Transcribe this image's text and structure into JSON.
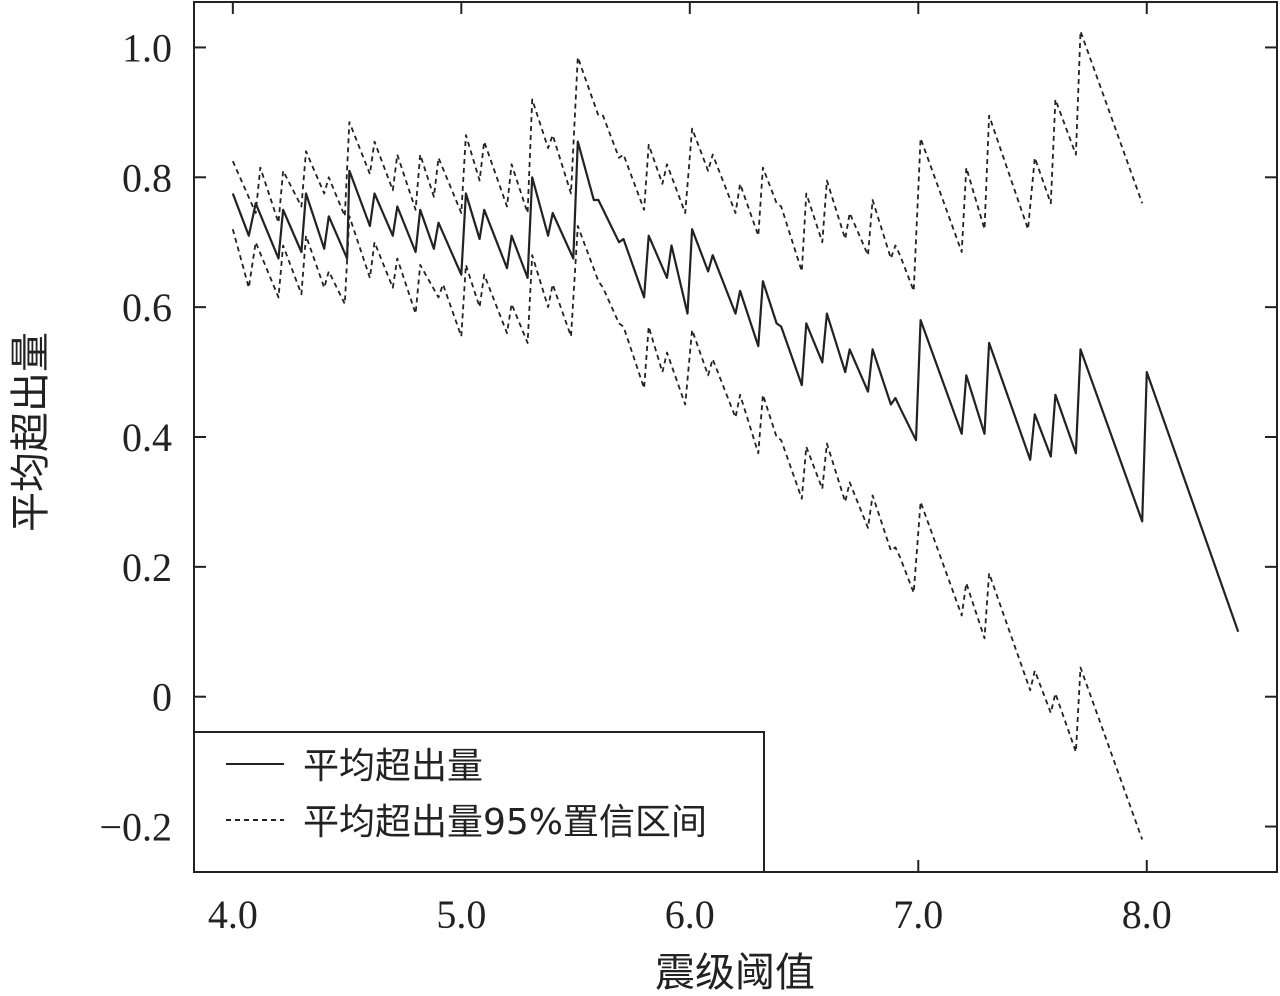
{
  "chart_data": {
    "type": "line",
    "title": "",
    "xlabel": "震级阈值",
    "ylabel": "平均超出量",
    "xlim": [
      3.83,
      8.57
    ],
    "ylim": [
      -0.27,
      1.07
    ],
    "x_ticks": [
      {
        "value": 4.0,
        "label": "4.0"
      },
      {
        "value": 5.0,
        "label": "5.0"
      },
      {
        "value": 6.0,
        "label": "6.0"
      },
      {
        "value": 7.0,
        "label": "7.0"
      },
      {
        "value": 8.0,
        "label": "8.0"
      }
    ],
    "y_ticks": [
      {
        "value": 1.0,
        "label": "1.0"
      },
      {
        "value": 0.8,
        "label": "0.8"
      },
      {
        "value": 0.6,
        "label": "0.6"
      },
      {
        "value": 0.4,
        "label": "0.4"
      },
      {
        "value": 0.2,
        "label": "0.2"
      },
      {
        "value": 0.0,
        "label": "0"
      },
      {
        "value": -0.2,
        "label": "−0.2"
      }
    ],
    "grid": false,
    "legend_position": "bottom-left",
    "series": [
      {
        "name": "平均超出量",
        "style": "solid",
        "color": "#222222",
        "points": [
          [
            4.0,
            0.775
          ],
          [
            4.07,
            0.71
          ],
          [
            4.1,
            0.76
          ],
          [
            4.2,
            0.675
          ],
          [
            4.22,
            0.75
          ],
          [
            4.3,
            0.685
          ],
          [
            4.32,
            0.775
          ],
          [
            4.4,
            0.69
          ],
          [
            4.42,
            0.74
          ],
          [
            4.5,
            0.675
          ],
          [
            4.51,
            0.81
          ],
          [
            4.6,
            0.725
          ],
          [
            4.62,
            0.775
          ],
          [
            4.7,
            0.71
          ],
          [
            4.72,
            0.755
          ],
          [
            4.8,
            0.685
          ],
          [
            4.82,
            0.75
          ],
          [
            4.88,
            0.69
          ],
          [
            4.9,
            0.73
          ],
          [
            5.0,
            0.65
          ],
          [
            5.02,
            0.775
          ],
          [
            5.08,
            0.705
          ],
          [
            5.1,
            0.75
          ],
          [
            5.2,
            0.66
          ],
          [
            5.22,
            0.71
          ],
          [
            5.29,
            0.645
          ],
          [
            5.31,
            0.8
          ],
          [
            5.38,
            0.71
          ],
          [
            5.4,
            0.745
          ],
          [
            5.49,
            0.675
          ],
          [
            5.51,
            0.855
          ],
          [
            5.58,
            0.765
          ],
          [
            5.6,
            0.765
          ],
          [
            5.69,
            0.7
          ],
          [
            5.71,
            0.705
          ],
          [
            5.8,
            0.615
          ],
          [
            5.82,
            0.71
          ],
          [
            5.9,
            0.645
          ],
          [
            5.92,
            0.695
          ],
          [
            5.99,
            0.59
          ],
          [
            6.01,
            0.72
          ],
          [
            6.08,
            0.655
          ],
          [
            6.1,
            0.68
          ],
          [
            6.2,
            0.59
          ],
          [
            6.22,
            0.625
          ],
          [
            6.3,
            0.54
          ],
          [
            6.32,
            0.64
          ],
          [
            6.38,
            0.575
          ],
          [
            6.4,
            0.57
          ],
          [
            6.49,
            0.48
          ],
          [
            6.51,
            0.575
          ],
          [
            6.58,
            0.515
          ],
          [
            6.6,
            0.59
          ],
          [
            6.68,
            0.5
          ],
          [
            6.7,
            0.535
          ],
          [
            6.78,
            0.47
          ],
          [
            6.8,
            0.535
          ],
          [
            6.88,
            0.45
          ],
          [
            6.9,
            0.46
          ],
          [
            6.92,
            0.445
          ],
          [
            6.99,
            0.395
          ],
          [
            7.01,
            0.58
          ],
          [
            7.19,
            0.405
          ],
          [
            7.21,
            0.495
          ],
          [
            7.29,
            0.405
          ],
          [
            7.31,
            0.545
          ],
          [
            7.49,
            0.365
          ],
          [
            7.51,
            0.435
          ],
          [
            7.58,
            0.37
          ],
          [
            7.6,
            0.465
          ],
          [
            7.69,
            0.375
          ],
          [
            7.71,
            0.535
          ],
          [
            7.98,
            0.27
          ],
          [
            8.0,
            0.5
          ],
          [
            8.4,
            0.1
          ]
        ]
      },
      {
        "name": "平均超出量95%置信区间",
        "style": "dashed",
        "color": "#222222",
        "points": [
          [
            4.0,
            0.825
          ],
          [
            4.1,
            0.745
          ],
          [
            4.12,
            0.815
          ],
          [
            4.2,
            0.73
          ],
          [
            4.22,
            0.81
          ],
          [
            4.3,
            0.755
          ],
          [
            4.32,
            0.84
          ],
          [
            4.4,
            0.775
          ],
          [
            4.42,
            0.8
          ],
          [
            4.49,
            0.74
          ],
          [
            4.51,
            0.885
          ],
          [
            4.6,
            0.805
          ],
          [
            4.62,
            0.855
          ],
          [
            4.7,
            0.78
          ],
          [
            4.72,
            0.835
          ],
          [
            4.8,
            0.75
          ],
          [
            4.82,
            0.835
          ],
          [
            4.88,
            0.77
          ],
          [
            4.9,
            0.83
          ],
          [
            5.0,
            0.745
          ],
          [
            5.02,
            0.865
          ],
          [
            5.08,
            0.795
          ],
          [
            5.1,
            0.855
          ],
          [
            5.2,
            0.755
          ],
          [
            5.22,
            0.82
          ],
          [
            5.29,
            0.745
          ],
          [
            5.31,
            0.92
          ],
          [
            5.38,
            0.845
          ],
          [
            5.4,
            0.865
          ],
          [
            5.48,
            0.775
          ],
          [
            5.51,
            0.985
          ],
          [
            5.6,
            0.895
          ],
          [
            5.62,
            0.895
          ],
          [
            5.69,
            0.83
          ],
          [
            5.71,
            0.835
          ],
          [
            5.8,
            0.75
          ],
          [
            5.82,
            0.85
          ],
          [
            5.88,
            0.79
          ],
          [
            5.9,
            0.82
          ],
          [
            5.98,
            0.745
          ],
          [
            6.01,
            0.875
          ],
          [
            6.08,
            0.81
          ],
          [
            6.1,
            0.835
          ],
          [
            6.2,
            0.745
          ],
          [
            6.22,
            0.79
          ],
          [
            6.3,
            0.71
          ],
          [
            6.32,
            0.815
          ],
          [
            6.38,
            0.76
          ],
          [
            6.4,
            0.755
          ],
          [
            6.49,
            0.655
          ],
          [
            6.51,
            0.775
          ],
          [
            6.58,
            0.7
          ],
          [
            6.6,
            0.795
          ],
          [
            6.68,
            0.705
          ],
          [
            6.7,
            0.745
          ],
          [
            6.78,
            0.68
          ],
          [
            6.8,
            0.765
          ],
          [
            6.88,
            0.675
          ],
          [
            6.9,
            0.695
          ],
          [
            6.92,
            0.68
          ],
          [
            6.98,
            0.625
          ],
          [
            7.01,
            0.86
          ],
          [
            7.19,
            0.685
          ],
          [
            7.21,
            0.815
          ],
          [
            7.29,
            0.72
          ],
          [
            7.31,
            0.895
          ],
          [
            7.48,
            0.72
          ],
          [
            7.51,
            0.83
          ],
          [
            7.58,
            0.76
          ],
          [
            7.6,
            0.92
          ],
          [
            7.69,
            0.835
          ],
          [
            7.71,
            1.025
          ],
          [
            7.98,
            0.76
          ]
        ]
      },
      {
        "name": "",
        "style": "dashed",
        "color": "#222222",
        "points": [
          [
            4.0,
            0.72
          ],
          [
            4.07,
            0.63
          ],
          [
            4.1,
            0.7
          ],
          [
            4.2,
            0.615
          ],
          [
            4.22,
            0.695
          ],
          [
            4.3,
            0.62
          ],
          [
            4.32,
            0.71
          ],
          [
            4.4,
            0.63
          ],
          [
            4.42,
            0.655
          ],
          [
            4.49,
            0.605
          ],
          [
            4.51,
            0.74
          ],
          [
            4.6,
            0.645
          ],
          [
            4.62,
            0.7
          ],
          [
            4.7,
            0.63
          ],
          [
            4.72,
            0.675
          ],
          [
            4.8,
            0.59
          ],
          [
            4.82,
            0.665
          ],
          [
            4.9,
            0.615
          ],
          [
            4.92,
            0.635
          ],
          [
            5.0,
            0.555
          ],
          [
            5.02,
            0.665
          ],
          [
            5.08,
            0.6
          ],
          [
            5.1,
            0.65
          ],
          [
            5.2,
            0.56
          ],
          [
            5.22,
            0.605
          ],
          [
            5.29,
            0.545
          ],
          [
            5.31,
            0.68
          ],
          [
            5.38,
            0.6
          ],
          [
            5.4,
            0.635
          ],
          [
            5.48,
            0.555
          ],
          [
            5.51,
            0.725
          ],
          [
            5.6,
            0.64
          ],
          [
            5.62,
            0.63
          ],
          [
            5.69,
            0.575
          ],
          [
            5.71,
            0.57
          ],
          [
            5.8,
            0.475
          ],
          [
            5.82,
            0.57
          ],
          [
            5.88,
            0.5
          ],
          [
            5.9,
            0.53
          ],
          [
            5.98,
            0.45
          ],
          [
            6.01,
            0.565
          ],
          [
            6.08,
            0.495
          ],
          [
            6.1,
            0.52
          ],
          [
            6.2,
            0.43
          ],
          [
            6.22,
            0.465
          ],
          [
            6.3,
            0.375
          ],
          [
            6.32,
            0.465
          ],
          [
            6.38,
            0.4
          ],
          [
            6.4,
            0.395
          ],
          [
            6.49,
            0.305
          ],
          [
            6.51,
            0.385
          ],
          [
            6.58,
            0.32
          ],
          [
            6.6,
            0.39
          ],
          [
            6.68,
            0.3
          ],
          [
            6.7,
            0.33
          ],
          [
            6.78,
            0.26
          ],
          [
            6.8,
            0.31
          ],
          [
            6.88,
            0.225
          ],
          [
            6.9,
            0.23
          ],
          [
            6.92,
            0.215
          ],
          [
            6.98,
            0.16
          ],
          [
            7.01,
            0.3
          ],
          [
            7.19,
            0.125
          ],
          [
            7.21,
            0.175
          ],
          [
            7.29,
            0.09
          ],
          [
            7.31,
            0.19
          ],
          [
            7.49,
            0.01
          ],
          [
            7.51,
            0.04
          ],
          [
            7.58,
            -0.025
          ],
          [
            7.6,
            0.005
          ],
          [
            7.69,
            -0.085
          ],
          [
            7.71,
            0.045
          ],
          [
            7.98,
            -0.22
          ]
        ]
      }
    ],
    "legend": [
      {
        "label": "平均超出量",
        "style": "solid"
      },
      {
        "label": "平均超出量95%置信区间",
        "style": "dashed"
      }
    ]
  }
}
